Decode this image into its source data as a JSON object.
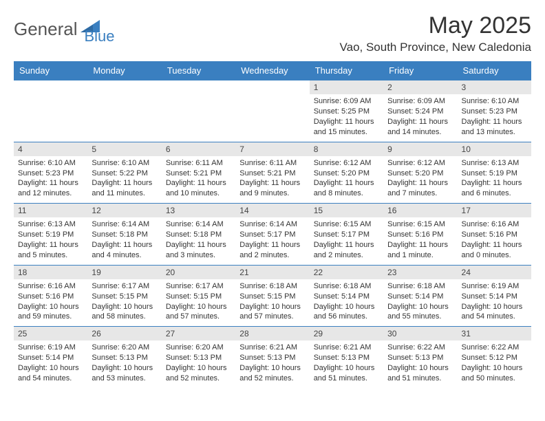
{
  "logo": {
    "text1": "General",
    "text2": "Blue"
  },
  "title": "May 2025",
  "location": "Vao, South Province, New Caledonia",
  "weekdays": [
    "Sunday",
    "Monday",
    "Tuesday",
    "Wednesday",
    "Thursday",
    "Friday",
    "Saturday"
  ],
  "colors": {
    "header_bg": "#3a7fc0",
    "header_text": "#ffffff",
    "daynum_bg": "#e7e7e7",
    "row_border": "#3a7fc0",
    "text": "#333333",
    "logo_accent": "#3a7fc0"
  },
  "weeks": [
    [
      {
        "n": "",
        "sr": "",
        "ss": "",
        "dl": ""
      },
      {
        "n": "",
        "sr": "",
        "ss": "",
        "dl": ""
      },
      {
        "n": "",
        "sr": "",
        "ss": "",
        "dl": ""
      },
      {
        "n": "",
        "sr": "",
        "ss": "",
        "dl": ""
      },
      {
        "n": "1",
        "sr": "Sunrise: 6:09 AM",
        "ss": "Sunset: 5:25 PM",
        "dl": "Daylight: 11 hours and 15 minutes."
      },
      {
        "n": "2",
        "sr": "Sunrise: 6:09 AM",
        "ss": "Sunset: 5:24 PM",
        "dl": "Daylight: 11 hours and 14 minutes."
      },
      {
        "n": "3",
        "sr": "Sunrise: 6:10 AM",
        "ss": "Sunset: 5:23 PM",
        "dl": "Daylight: 11 hours and 13 minutes."
      }
    ],
    [
      {
        "n": "4",
        "sr": "Sunrise: 6:10 AM",
        "ss": "Sunset: 5:23 PM",
        "dl": "Daylight: 11 hours and 12 minutes."
      },
      {
        "n": "5",
        "sr": "Sunrise: 6:10 AM",
        "ss": "Sunset: 5:22 PM",
        "dl": "Daylight: 11 hours and 11 minutes."
      },
      {
        "n": "6",
        "sr": "Sunrise: 6:11 AM",
        "ss": "Sunset: 5:21 PM",
        "dl": "Daylight: 11 hours and 10 minutes."
      },
      {
        "n": "7",
        "sr": "Sunrise: 6:11 AM",
        "ss": "Sunset: 5:21 PM",
        "dl": "Daylight: 11 hours and 9 minutes."
      },
      {
        "n": "8",
        "sr": "Sunrise: 6:12 AM",
        "ss": "Sunset: 5:20 PM",
        "dl": "Daylight: 11 hours and 8 minutes."
      },
      {
        "n": "9",
        "sr": "Sunrise: 6:12 AM",
        "ss": "Sunset: 5:20 PM",
        "dl": "Daylight: 11 hours and 7 minutes."
      },
      {
        "n": "10",
        "sr": "Sunrise: 6:13 AM",
        "ss": "Sunset: 5:19 PM",
        "dl": "Daylight: 11 hours and 6 minutes."
      }
    ],
    [
      {
        "n": "11",
        "sr": "Sunrise: 6:13 AM",
        "ss": "Sunset: 5:19 PM",
        "dl": "Daylight: 11 hours and 5 minutes."
      },
      {
        "n": "12",
        "sr": "Sunrise: 6:14 AM",
        "ss": "Sunset: 5:18 PM",
        "dl": "Daylight: 11 hours and 4 minutes."
      },
      {
        "n": "13",
        "sr": "Sunrise: 6:14 AM",
        "ss": "Sunset: 5:18 PM",
        "dl": "Daylight: 11 hours and 3 minutes."
      },
      {
        "n": "14",
        "sr": "Sunrise: 6:14 AM",
        "ss": "Sunset: 5:17 PM",
        "dl": "Daylight: 11 hours and 2 minutes."
      },
      {
        "n": "15",
        "sr": "Sunrise: 6:15 AM",
        "ss": "Sunset: 5:17 PM",
        "dl": "Daylight: 11 hours and 2 minutes."
      },
      {
        "n": "16",
        "sr": "Sunrise: 6:15 AM",
        "ss": "Sunset: 5:16 PM",
        "dl": "Daylight: 11 hours and 1 minute."
      },
      {
        "n": "17",
        "sr": "Sunrise: 6:16 AM",
        "ss": "Sunset: 5:16 PM",
        "dl": "Daylight: 11 hours and 0 minutes."
      }
    ],
    [
      {
        "n": "18",
        "sr": "Sunrise: 6:16 AM",
        "ss": "Sunset: 5:16 PM",
        "dl": "Daylight: 10 hours and 59 minutes."
      },
      {
        "n": "19",
        "sr": "Sunrise: 6:17 AM",
        "ss": "Sunset: 5:15 PM",
        "dl": "Daylight: 10 hours and 58 minutes."
      },
      {
        "n": "20",
        "sr": "Sunrise: 6:17 AM",
        "ss": "Sunset: 5:15 PM",
        "dl": "Daylight: 10 hours and 57 minutes."
      },
      {
        "n": "21",
        "sr": "Sunrise: 6:18 AM",
        "ss": "Sunset: 5:15 PM",
        "dl": "Daylight: 10 hours and 57 minutes."
      },
      {
        "n": "22",
        "sr": "Sunrise: 6:18 AM",
        "ss": "Sunset: 5:14 PM",
        "dl": "Daylight: 10 hours and 56 minutes."
      },
      {
        "n": "23",
        "sr": "Sunrise: 6:18 AM",
        "ss": "Sunset: 5:14 PM",
        "dl": "Daylight: 10 hours and 55 minutes."
      },
      {
        "n": "24",
        "sr": "Sunrise: 6:19 AM",
        "ss": "Sunset: 5:14 PM",
        "dl": "Daylight: 10 hours and 54 minutes."
      }
    ],
    [
      {
        "n": "25",
        "sr": "Sunrise: 6:19 AM",
        "ss": "Sunset: 5:14 PM",
        "dl": "Daylight: 10 hours and 54 minutes."
      },
      {
        "n": "26",
        "sr": "Sunrise: 6:20 AM",
        "ss": "Sunset: 5:13 PM",
        "dl": "Daylight: 10 hours and 53 minutes."
      },
      {
        "n": "27",
        "sr": "Sunrise: 6:20 AM",
        "ss": "Sunset: 5:13 PM",
        "dl": "Daylight: 10 hours and 52 minutes."
      },
      {
        "n": "28",
        "sr": "Sunrise: 6:21 AM",
        "ss": "Sunset: 5:13 PM",
        "dl": "Daylight: 10 hours and 52 minutes."
      },
      {
        "n": "29",
        "sr": "Sunrise: 6:21 AM",
        "ss": "Sunset: 5:13 PM",
        "dl": "Daylight: 10 hours and 51 minutes."
      },
      {
        "n": "30",
        "sr": "Sunrise: 6:22 AM",
        "ss": "Sunset: 5:13 PM",
        "dl": "Daylight: 10 hours and 51 minutes."
      },
      {
        "n": "31",
        "sr": "Sunrise: 6:22 AM",
        "ss": "Sunset: 5:12 PM",
        "dl": "Daylight: 10 hours and 50 minutes."
      }
    ]
  ]
}
